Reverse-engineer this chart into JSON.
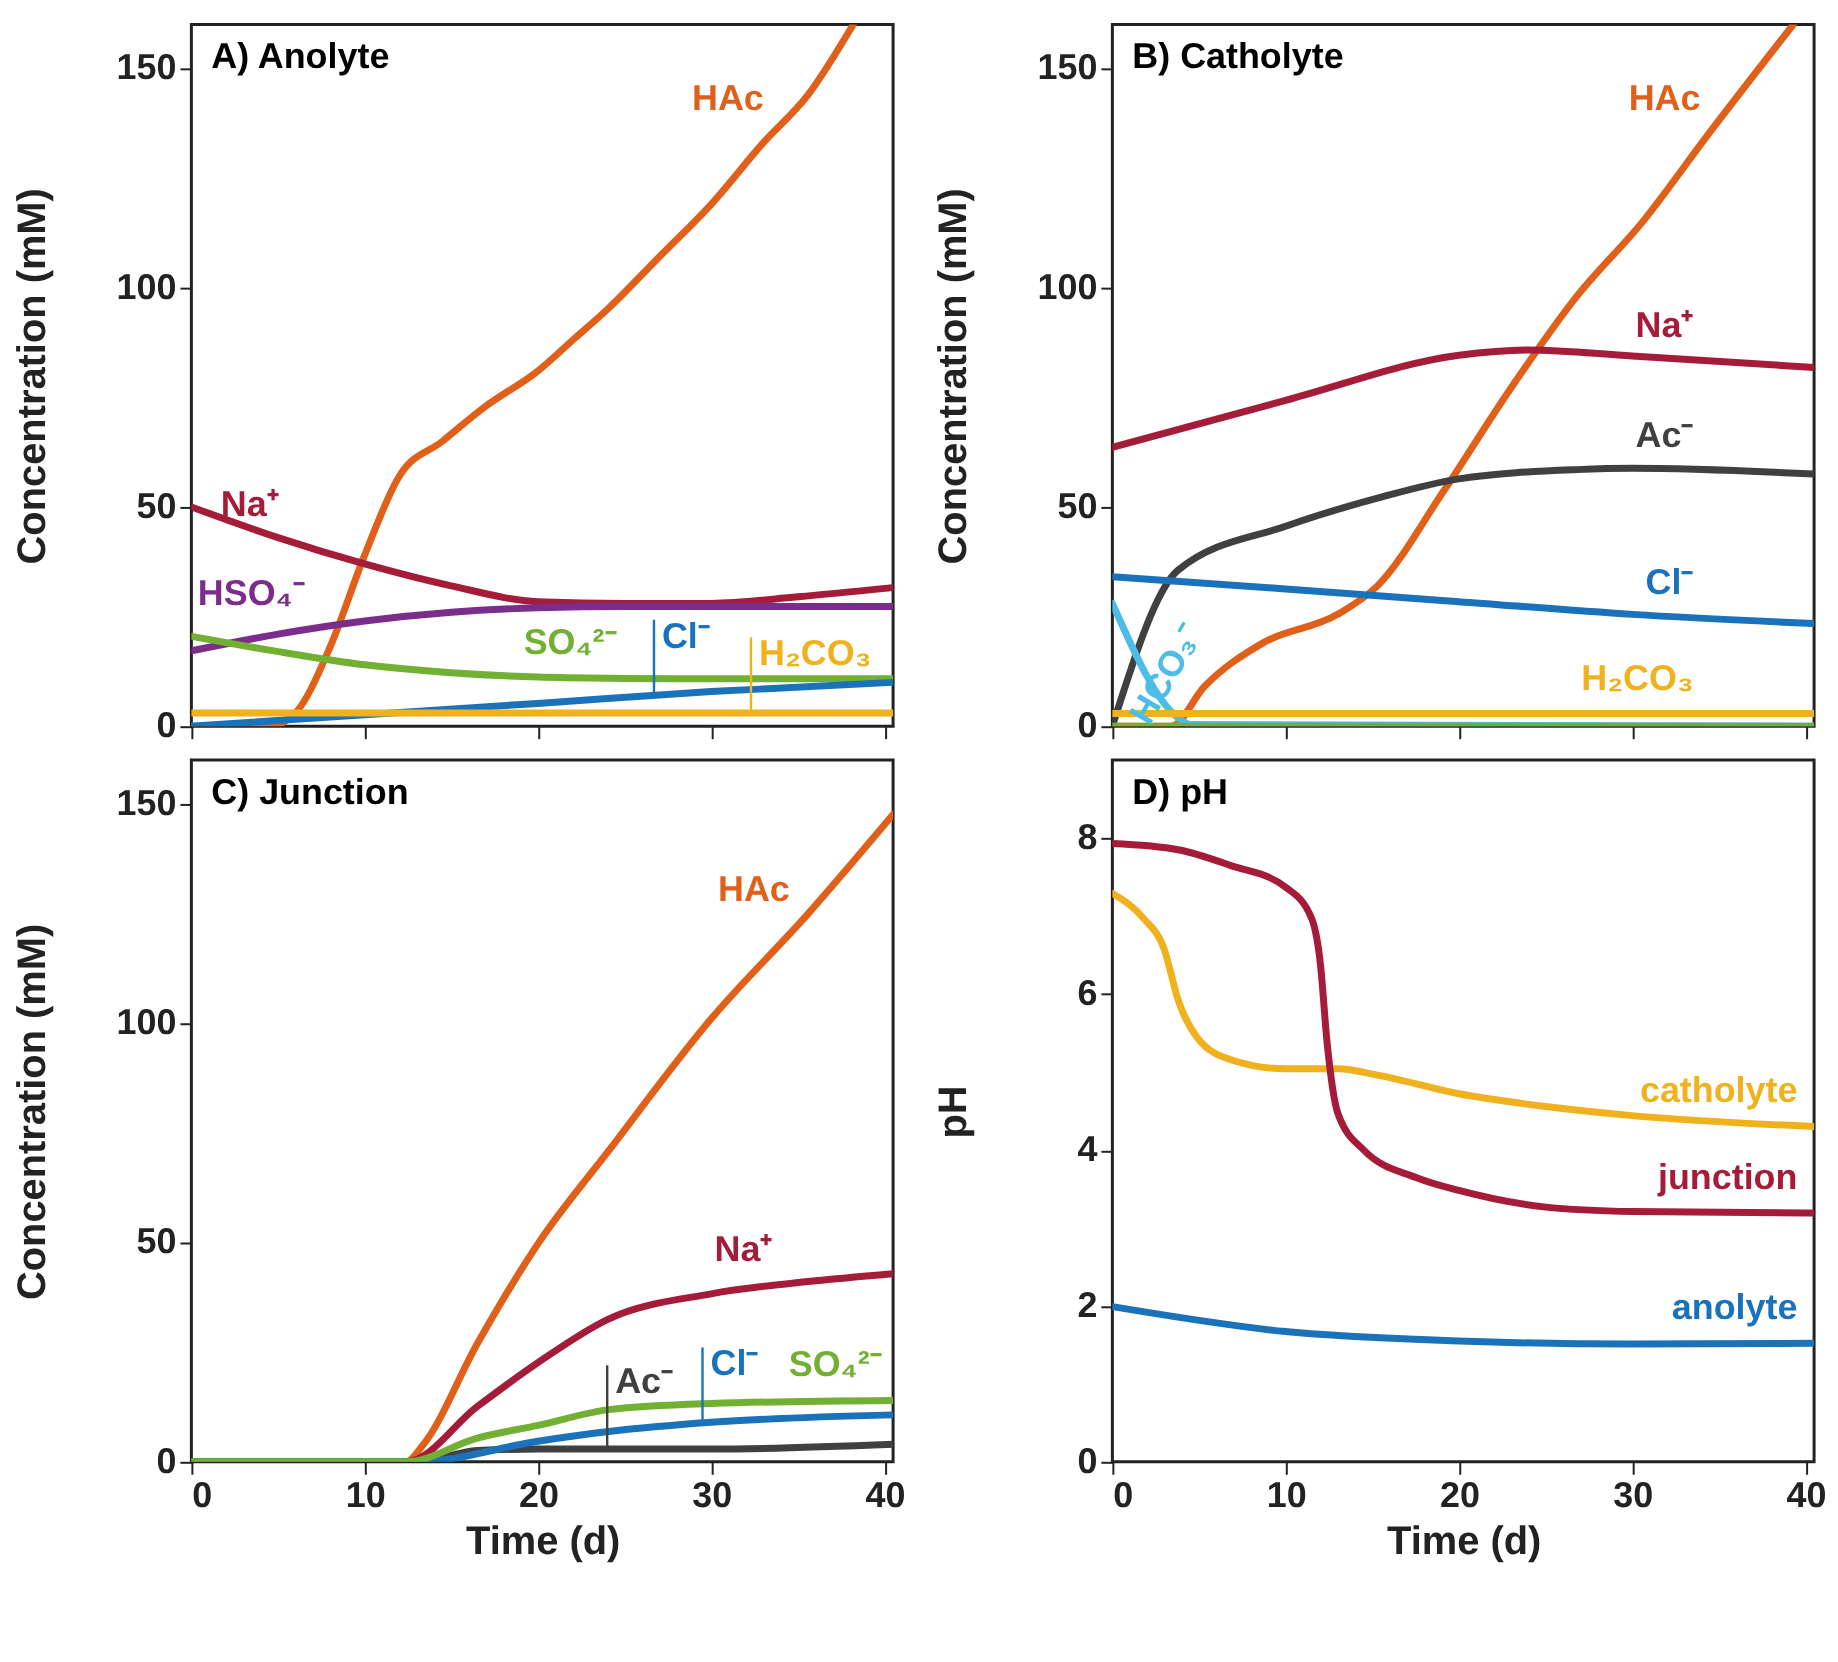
{
  "chart_data": [
    {
      "type": "line",
      "title": "A) Anolyte",
      "ylabel": "Concentration (mM)",
      "xlim": [
        0,
        40.5
      ],
      "xticks": [
        0,
        10,
        20,
        30,
        40
      ],
      "ylim": [
        0,
        160
      ],
      "yticks": [
        0,
        50,
        100,
        150
      ],
      "tick_labels": "y",
      "series": [
        {
          "color": "#e0601a",
          "x": [
            0,
            4.5,
            6,
            8,
            10,
            12,
            14.5,
            17,
            20,
            22,
            24,
            27,
            30,
            33,
            35.6,
            38.2
          ],
          "values": [
            0,
            0,
            3,
            18,
            39,
            57,
            65,
            73,
            81,
            88,
            95,
            107,
            119,
            133,
            144,
            160
          ]
        },
        {
          "color": "#a51c3a",
          "x": [
            0,
            5,
            10,
            15,
            20,
            25,
            30,
            35,
            40.5
          ],
          "values": [
            50,
            43,
            37,
            32,
            28.4,
            28,
            28,
            29.5,
            31.6
          ]
        },
        {
          "color": "#7b2d8b",
          "x": [
            0,
            5,
            10,
            15,
            20,
            25,
            30,
            40.5
          ],
          "values": [
            17.2,
            21,
            24,
            26,
            27,
            27.3,
            27.3,
            27.3
          ]
        },
        {
          "color": "#72b033",
          "x": [
            0,
            5,
            10,
            15,
            20,
            25,
            30,
            40.5
          ],
          "values": [
            20.5,
            17,
            14,
            12.2,
            11.2,
            10.9,
            10.8,
            10.8
          ]
        },
        {
          "color": "#1a72bb",
          "x": [
            0,
            10,
            20,
            30,
            40.5
          ],
          "values": [
            0,
            2.6,
            5.2,
            7.9,
            10
          ]
        },
        {
          "color": "#efb21e",
          "x": [
            0,
            40.5
          ],
          "values": [
            3,
            3
          ]
        }
      ],
      "annotations": [
        {
          "text": "HAc",
          "x": 33.5,
          "y": 135
        },
        {
          "text": "Na⁺",
          "x": 5.5,
          "y": 42.4
        },
        {
          "text": "HSO₄⁻",
          "x": 7,
          "y": 22.2
        },
        {
          "text": "SO₄²⁻",
          "x": 25,
          "y": 10.9
        },
        {
          "text": "Cl⁻",
          "x": 26.7,
          "y": 7
        },
        {
          "text": "H₂CO₃",
          "x": 32.3,
          "y": 3
        }
      ]
    },
    {
      "type": "line",
      "title": "B) Catholyte",
      "ylabel": "Concentration (mM)",
      "xlim": [
        0,
        40.5
      ],
      "xticks": [
        0,
        10,
        20,
        30,
        40
      ],
      "ylim": [
        0,
        160
      ],
      "yticks": [
        0,
        50,
        100,
        150
      ],
      "tick_labels": "y",
      "series": [
        {
          "color": "#e0601a",
          "x": [
            0,
            3.4,
            5.3,
            8.7,
            13,
            15.3,
            19.1,
            22.9,
            26.8,
            30.6,
            34.4,
            39.3
          ],
          "values": [
            0,
            0,
            9,
            19,
            25.5,
            32,
            53.5,
            76.5,
            98,
            115,
            135,
            160
          ]
        },
        {
          "color": "#a51c3a",
          "x": [
            0,
            10,
            20,
            24,
            30,
            40.5
          ],
          "values": [
            63.6,
            74.3,
            84.6,
            85.8,
            84.4,
            81.8
          ]
        },
        {
          "color": "#404040",
          "x": [
            0,
            3.8,
            10,
            15.3,
            20,
            26.8,
            30,
            40.5
          ],
          "values": [
            0,
            35.6,
            45.6,
            52,
            56.4,
            58.5,
            58.8,
            57.5
          ]
        },
        {
          "color": "#1a72bb",
          "x": [
            0,
            10,
            20,
            30,
            40.5
          ],
          "values": [
            34.1,
            31.3,
            28.4,
            25.5,
            23.4
          ]
        },
        {
          "color": "#4dbde8",
          "x": [
            0,
            3.8,
            4.5,
            40.5
          ],
          "values": [
            28,
            1.9,
            0.4,
            0
          ]
        },
        {
          "color": "#efb21e",
          "x": [
            0,
            40.5
          ],
          "values": [
            2.9,
            2.9
          ]
        },
        {
          "color": "#72b033",
          "x": [
            0,
            40.5
          ],
          "values": [
            0,
            0
          ]
        }
      ],
      "annotations": [
        {
          "text": "HAc",
          "x": 34.4,
          "y": 135
        },
        {
          "text": "Na⁺",
          "x": 34,
          "y": 83.4
        },
        {
          "text": "Ac⁻",
          "x": 34,
          "y": 58.3
        },
        {
          "text": "Cl⁻",
          "x": 34,
          "y": 24.7
        },
        {
          "text": "HCO₃⁻",
          "x": 2.5,
          "y": 10.8
        },
        {
          "text": "H₂CO₃",
          "x": 34,
          "y": 2.9
        }
      ]
    },
    {
      "type": "line",
      "title": "C) Junction",
      "xlabel": "Time (d)",
      "ylabel": "Concentration (mM)",
      "xlim": [
        0,
        40.5
      ],
      "xticks": [
        0,
        10,
        20,
        30,
        40
      ],
      "ylim": [
        0,
        160
      ],
      "yticks": [
        0,
        50,
        100,
        150
      ],
      "series": [
        {
          "color": "#e0601a",
          "x": [
            0,
            12.4,
            13.4,
            16.5,
            20,
            24.1,
            30,
            35.6,
            40.5
          ],
          "values": [
            0,
            0,
            4,
            26.9,
            49.7,
            71,
            101,
            125,
            147.6
          ]
        },
        {
          "color": "#a51c3a",
          "x": [
            0,
            12.4,
            16.5,
            20,
            24.1,
            30,
            35.6,
            40.5
          ],
          "values": [
            0,
            0,
            12.6,
            22.6,
            32.6,
            38.3,
            41.1,
            42.9
          ]
        },
        {
          "color": "#404040",
          "x": [
            0,
            13,
            16.5,
            20,
            30,
            40.5
          ],
          "values": [
            0,
            0,
            2.6,
            2.9,
            2.9,
            4
          ]
        },
        {
          "color": "#1a72bb",
          "x": [
            0,
            13,
            20,
            24.1,
            30,
            40.5
          ],
          "values": [
            0,
            0,
            4.7,
            6.9,
            9,
            10.7
          ]
        },
        {
          "color": "#72b033",
          "x": [
            0,
            12.4,
            16.5,
            20,
            24.1,
            30,
            40.5
          ],
          "values": [
            0,
            0,
            5.4,
            8.3,
            11.9,
            13.3,
            14
          ]
        }
      ],
      "annotations": [
        {
          "text": "HAc",
          "x": 35,
          "y": 122.4
        },
        {
          "text": "Na⁺",
          "x": 34,
          "y": 40.3
        },
        {
          "text": "Ac⁻",
          "x": 24,
          "y": 2.9
        },
        {
          "text": "Cl⁻",
          "x": 29.5,
          "y": 8.8
        },
        {
          "text": "SO₄²⁻",
          "x": 40.3,
          "y": 14
        }
      ]
    },
    {
      "type": "line",
      "title": "D) pH",
      "xlabel": "Time (d)",
      "ylabel": "pH",
      "xlim": [
        0,
        40.5
      ],
      "xticks": [
        0,
        10,
        20,
        30,
        40
      ],
      "ylim": [
        0,
        9
      ],
      "yticks": [
        0,
        2,
        4,
        6,
        8
      ],
      "series": [
        {
          "color": "#efb21e",
          "x": [
            0,
            1.8,
            3,
            3.8,
            4.9,
            6.8,
            10,
            13,
            15.3,
            20,
            24.9,
            30,
            40.5
          ],
          "values": [
            7.29,
            6.97,
            6.57,
            5.92,
            5.44,
            5.16,
            5.04,
            5.04,
            4.96,
            4.72,
            4.56,
            4.44,
            4.3
          ]
        },
        {
          "color": "#a51c3a",
          "x": [
            0,
            3.8,
            6.8,
            10,
            11.5,
            12,
            12.4,
            13,
            14.5,
            17.6,
            20,
            24.9,
            30,
            40.5
          ],
          "values": [
            7.93,
            7.85,
            7.65,
            7.37,
            6.97,
            6.4,
            5.36,
            4.48,
            4.0,
            3.64,
            3.48,
            3.27,
            3.21,
            3.19
          ]
        },
        {
          "color": "#1a72bb",
          "x": [
            0,
            10,
            20,
            30,
            40.5
          ],
          "values": [
            1.99,
            1.67,
            1.55,
            1.51,
            1.52
          ]
        }
      ],
      "annotations": [
        {
          "text": "catholyte",
          "x": 40,
          "y": 4.31
        },
        {
          "text": "junction",
          "x": 40,
          "y": 3.19
        },
        {
          "text": "anolyte",
          "x": 40,
          "y": 1.52
        }
      ]
    }
  ]
}
